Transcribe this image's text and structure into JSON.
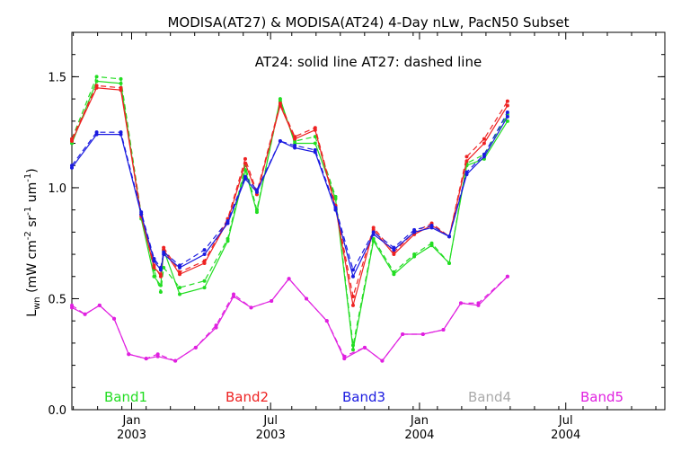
{
  "chart_data": {
    "type": "line",
    "title": "MODISA(AT27) & MODISA(AT24) 4-Day nLw, PacN50 Subset",
    "subtitle": "AT24: solid line    AT27: dashed line",
    "ylabel": "Lwn (mW cm-2 sr-1 um-1)",
    "ylabel_parts": {
      "main": "L",
      "sub": "wn",
      "rest1": " (mW cm",
      "sup1": "-2",
      "rest2": " sr",
      "sup2": "-1",
      "rest3": " um",
      "sup3": "-1",
      "rest4": ")"
    },
    "ylim": [
      0,
      1.7
    ],
    "yticks": [
      0.0,
      0.5,
      1.0,
      1.5
    ],
    "ytick_labels": [
      "0.0",
      "0.5",
      "1.0",
      "1.5"
    ],
    "xlim": [
      -2.05,
      18.3
    ],
    "xticks": [
      {
        "x": 0,
        "month": "Jan",
        "year": "2003"
      },
      {
        "x": 4.77,
        "month": "Jul",
        "year": "2003"
      },
      {
        "x": 9.88,
        "month": "Jan",
        "year": "2004"
      },
      {
        "x": 14.9,
        "month": "Jul",
        "year": "2004"
      }
    ],
    "x": [
      -2.05,
      -1.2,
      -0.7,
      -0.2,
      0.3,
      0.55,
      0.98,
      1.1,
      1.45,
      2.0,
      2.5,
      3.0,
      3.4,
      3.6,
      4.3,
      4.77,
      5.3,
      5.7,
      6.6,
      6.85,
      7.5,
      8.0,
      8.4,
      9.0,
      9.4,
      10.0,
      10.5,
      11.2,
      12.0,
      12.6,
      13.5,
      14.0,
      14.67,
      16.0
    ],
    "series": [
      {
        "name": "Band1",
        "color": "#22dd22",
        "solid": [
          [
            -2.05,
            1.2
          ],
          [
            -1.2,
            1.48
          ],
          [
            -0.37,
            1.47
          ],
          [
            0.33,
            0.86
          ],
          [
            0.77,
            0.6
          ],
          [
            1.0,
            0.56
          ],
          [
            1.1,
            0.72
          ],
          [
            1.65,
            0.52
          ],
          [
            2.5,
            0.55
          ],
          [
            3.3,
            0.76
          ],
          [
            3.9,
            1.08
          ],
          [
            4.3,
            0.89
          ],
          [
            5.1,
            1.4
          ],
          [
            5.6,
            1.2
          ],
          [
            6.3,
            1.2
          ],
          [
            7.0,
            0.95
          ],
          [
            7.6,
            0.27
          ],
          [
            8.3,
            0.76
          ],
          [
            9.0,
            0.61
          ],
          [
            9.7,
            0.69
          ],
          [
            10.3,
            0.74
          ],
          [
            10.9,
            0.66
          ],
          [
            11.5,
            1.1
          ],
          [
            12.1,
            1.13
          ],
          [
            12.9,
            1.3
          ]
        ],
        "dashed": [
          [
            -2.05,
            1.22
          ],
          [
            -1.2,
            1.5
          ],
          [
            -0.37,
            1.49
          ],
          [
            0.33,
            0.88
          ],
          [
            0.77,
            0.63
          ],
          [
            1.0,
            0.53
          ],
          [
            1.1,
            0.64
          ],
          [
            1.65,
            0.55
          ],
          [
            2.5,
            0.58
          ],
          [
            3.3,
            0.77
          ],
          [
            3.9,
            1.1
          ],
          [
            4.3,
            0.9
          ],
          [
            5.1,
            1.39
          ],
          [
            5.6,
            1.21
          ],
          [
            6.3,
            1.23
          ],
          [
            7.0,
            0.96
          ],
          [
            7.6,
            0.29
          ],
          [
            8.3,
            0.77
          ],
          [
            9.0,
            0.62
          ],
          [
            9.7,
            0.7
          ],
          [
            10.3,
            0.75
          ],
          [
            10.9,
            0.66
          ],
          [
            11.5,
            1.11
          ],
          [
            12.1,
            1.15
          ],
          [
            12.9,
            1.33
          ]
        ]
      },
      {
        "name": "Band2",
        "color": "#ee2222",
        "solid": [
          [
            -2.05,
            1.21
          ],
          [
            -1.2,
            1.45
          ],
          [
            -0.37,
            1.44
          ],
          [
            0.33,
            0.87
          ],
          [
            0.77,
            0.64
          ],
          [
            1.0,
            0.61
          ],
          [
            1.1,
            0.72
          ],
          [
            1.65,
            0.61
          ],
          [
            2.5,
            0.66
          ],
          [
            3.3,
            0.85
          ],
          [
            3.9,
            1.11
          ],
          [
            4.3,
            0.97
          ],
          [
            5.1,
            1.37
          ],
          [
            5.6,
            1.22
          ],
          [
            6.3,
            1.26
          ],
          [
            7.0,
            0.91
          ],
          [
            7.6,
            0.47
          ],
          [
            8.3,
            0.81
          ],
          [
            9.0,
            0.7
          ],
          [
            9.7,
            0.79
          ],
          [
            10.3,
            0.83
          ],
          [
            10.9,
            0.78
          ],
          [
            11.5,
            1.12
          ],
          [
            12.1,
            1.2
          ],
          [
            12.9,
            1.37
          ]
        ],
        "dashed": [
          [
            -2.05,
            1.22
          ],
          [
            -1.2,
            1.46
          ],
          [
            -0.37,
            1.45
          ],
          [
            0.33,
            0.88
          ],
          [
            0.77,
            0.65
          ],
          [
            1.0,
            0.6
          ],
          [
            1.1,
            0.73
          ],
          [
            1.65,
            0.62
          ],
          [
            2.5,
            0.67
          ],
          [
            3.3,
            0.86
          ],
          [
            3.9,
            1.13
          ],
          [
            4.3,
            0.98
          ],
          [
            5.1,
            1.38
          ],
          [
            5.6,
            1.23
          ],
          [
            6.3,
            1.27
          ],
          [
            7.0,
            0.92
          ],
          [
            7.6,
            0.51
          ],
          [
            8.3,
            0.82
          ],
          [
            9.0,
            0.71
          ],
          [
            9.7,
            0.8
          ],
          [
            10.3,
            0.84
          ],
          [
            10.9,
            0.78
          ],
          [
            11.5,
            1.14
          ],
          [
            12.1,
            1.22
          ],
          [
            12.9,
            1.39
          ]
        ]
      },
      {
        "name": "Band3",
        "color": "#1a1ae0",
        "solid": [
          [
            -2.05,
            1.09
          ],
          [
            -1.2,
            1.24
          ],
          [
            -0.37,
            1.24
          ],
          [
            0.33,
            0.88
          ],
          [
            0.77,
            0.67
          ],
          [
            1.0,
            0.63
          ],
          [
            1.1,
            0.7
          ],
          [
            1.65,
            0.64
          ],
          [
            2.5,
            0.7
          ],
          [
            3.3,
            0.84
          ],
          [
            3.9,
            1.04
          ],
          [
            4.3,
            0.98
          ],
          [
            5.1,
            1.21
          ],
          [
            5.6,
            1.18
          ],
          [
            6.3,
            1.16
          ],
          [
            7.0,
            0.9
          ],
          [
            7.6,
            0.6
          ],
          [
            8.3,
            0.79
          ],
          [
            9.0,
            0.72
          ],
          [
            9.7,
            0.8
          ],
          [
            10.3,
            0.82
          ],
          [
            10.9,
            0.78
          ],
          [
            11.5,
            1.06
          ],
          [
            12.1,
            1.14
          ],
          [
            12.9,
            1.32
          ]
        ],
        "dashed": [
          [
            -2.05,
            1.1
          ],
          [
            -1.2,
            1.25
          ],
          [
            -0.37,
            1.25
          ],
          [
            0.33,
            0.89
          ],
          [
            0.77,
            0.68
          ],
          [
            1.0,
            0.64
          ],
          [
            1.1,
            0.71
          ],
          [
            1.65,
            0.65
          ],
          [
            2.5,
            0.72
          ],
          [
            3.3,
            0.85
          ],
          [
            3.9,
            1.05
          ],
          [
            4.3,
            0.99
          ],
          [
            5.1,
            1.21
          ],
          [
            5.6,
            1.19
          ],
          [
            6.3,
            1.17
          ],
          [
            7.0,
            0.91
          ],
          [
            7.6,
            0.63
          ],
          [
            8.3,
            0.8
          ],
          [
            9.0,
            0.73
          ],
          [
            9.7,
            0.81
          ],
          [
            10.3,
            0.83
          ],
          [
            10.9,
            0.78
          ],
          [
            11.5,
            1.07
          ],
          [
            12.1,
            1.15
          ],
          [
            12.9,
            1.34
          ]
        ]
      },
      {
        "name": "Band4",
        "color": "#aaaaaa",
        "solid": [],
        "dashed": []
      },
      {
        "name": "Band5",
        "color": "#e020e0",
        "solid": [
          [
            -2.05,
            0.46
          ],
          [
            -1.6,
            0.43
          ],
          [
            -1.1,
            0.47
          ],
          [
            -0.6,
            0.41
          ],
          [
            -0.1,
            0.25
          ],
          [
            0.5,
            0.23
          ],
          [
            0.9,
            0.24
          ],
          [
            1.5,
            0.22
          ],
          [
            2.2,
            0.28
          ],
          [
            2.9,
            0.37
          ],
          [
            3.5,
            0.51
          ],
          [
            4.1,
            0.46
          ],
          [
            4.8,
            0.49
          ],
          [
            5.4,
            0.59
          ],
          [
            6.0,
            0.5
          ],
          [
            6.7,
            0.4
          ],
          [
            7.3,
            0.23
          ],
          [
            8.0,
            0.28
          ],
          [
            8.6,
            0.22
          ],
          [
            9.3,
            0.34
          ],
          [
            10.0,
            0.34
          ],
          [
            10.7,
            0.36
          ],
          [
            11.3,
            0.48
          ],
          [
            11.9,
            0.47
          ],
          [
            12.9,
            0.6
          ]
        ],
        "dashed": [
          [
            -2.05,
            0.47
          ],
          [
            -1.6,
            0.43
          ],
          [
            -1.1,
            0.47
          ],
          [
            -0.6,
            0.41
          ],
          [
            -0.1,
            0.25
          ],
          [
            0.5,
            0.23
          ],
          [
            0.9,
            0.25
          ],
          [
            1.5,
            0.22
          ],
          [
            2.2,
            0.28
          ],
          [
            2.9,
            0.38
          ],
          [
            3.5,
            0.52
          ],
          [
            4.1,
            0.46
          ],
          [
            4.8,
            0.49
          ],
          [
            5.4,
            0.59
          ],
          [
            6.0,
            0.5
          ],
          [
            6.7,
            0.4
          ],
          [
            7.3,
            0.24
          ],
          [
            8.0,
            0.28
          ],
          [
            8.6,
            0.22
          ],
          [
            9.3,
            0.34
          ],
          [
            10.0,
            0.34
          ],
          [
            10.7,
            0.36
          ],
          [
            11.3,
            0.48
          ],
          [
            11.9,
            0.48
          ],
          [
            12.9,
            0.6
          ]
        ]
      }
    ],
    "legend": {
      "placement": "bottom",
      "entries": [
        "Band1",
        "Band2",
        "Band3",
        "Band4",
        "Band5"
      ]
    },
    "grid": false
  }
}
